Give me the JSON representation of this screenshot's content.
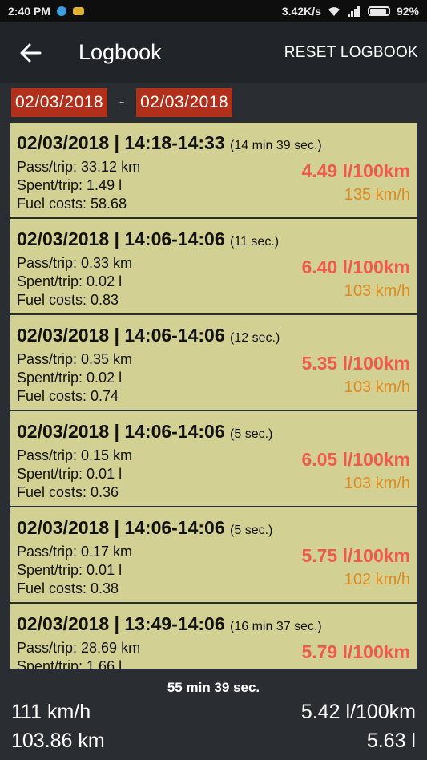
{
  "status": {
    "time": "2:40 PM",
    "speed": "3.42K/s",
    "battery": "92%"
  },
  "appbar": {
    "title": "Logbook",
    "reset": "RESET LOGBOOK"
  },
  "dates": {
    "from": "02/03/2018",
    "separator": "-",
    "to": "02/03/2018"
  },
  "entries": [
    {
      "head": "02/03/2018 | 14:18-14:33",
      "dur": "(14 min 39 sec.)",
      "pass": "Pass/trip: 33.12 km",
      "spent": "Spent/trip: 1.49 l",
      "costs": "Fuel costs: 58.68",
      "cons": "4.49 l/100km",
      "speed": "135 km/h"
    },
    {
      "head": "02/03/2018 | 14:06-14:06",
      "dur": "(11 sec.)",
      "pass": "Pass/trip: 0.33 km",
      "spent": "Spent/trip: 0.02 l",
      "costs": "Fuel costs: 0.83",
      "cons": "6.40 l/100km",
      "speed": "103 km/h"
    },
    {
      "head": "02/03/2018 | 14:06-14:06",
      "dur": "(12 sec.)",
      "pass": "Pass/trip: 0.35 km",
      "spent": "Spent/trip: 0.02 l",
      "costs": "Fuel costs: 0.74",
      "cons": "5.35 l/100km",
      "speed": "103 km/h"
    },
    {
      "head": "02/03/2018 | 14:06-14:06",
      "dur": "(5 sec.)",
      "pass": "Pass/trip: 0.15 km",
      "spent": "Spent/trip: 0.01 l",
      "costs": "Fuel costs: 0.36",
      "cons": "6.05 l/100km",
      "speed": "103 km/h"
    },
    {
      "head": "02/03/2018 | 14:06-14:06",
      "dur": "(5 sec.)",
      "pass": "Pass/trip: 0.17 km",
      "spent": "Spent/trip: 0.01 l",
      "costs": "Fuel costs: 0.38",
      "cons": "5.75 l/100km",
      "speed": "102 km/h"
    },
    {
      "head": "02/03/2018 | 13:49-14:06",
      "dur": "(16 min 37 sec.)",
      "pass": "Pass/trip: 28.69 km",
      "spent": "Spent/trip: 1.66 l",
      "costs": "",
      "cons": "5.79 l/100km",
      "speed": ""
    }
  ],
  "footer": {
    "total_time": "55 min 39 sec.",
    "avg_speed": "111 km/h",
    "avg_cons": "5.42 l/100km",
    "distance": "103.86 km",
    "fuel": "5.63 l"
  }
}
